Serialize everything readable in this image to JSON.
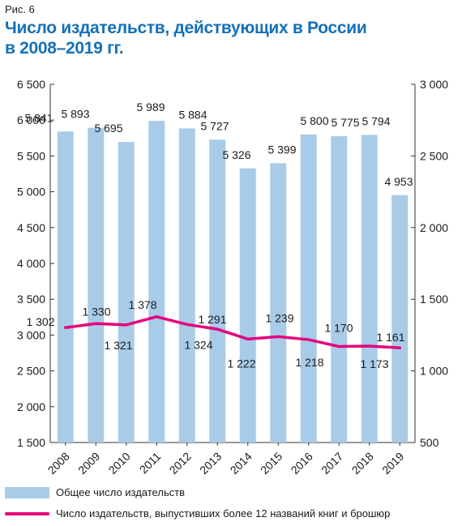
{
  "figure_label": "Рис. 6",
  "title_line1": "Число издательств, действующих в России",
  "title_line2": "в 2008–2019 гг.",
  "colors": {
    "bars": "#a8cbe8",
    "line": "#e5007d",
    "title": "#1570b8"
  },
  "chart_data": {
    "type": "bar",
    "categories": [
      "2008",
      "2009",
      "2010",
      "2011",
      "2012",
      "2013",
      "2014",
      "2015",
      "2016",
      "2017",
      "2018",
      "2019"
    ],
    "series": [
      {
        "name": "Общее число издательств",
        "type": "bar",
        "axis": "left",
        "values": [
          5841,
          5893,
          5695,
          5989,
          5884,
          5727,
          5326,
          5399,
          5800,
          5775,
          5794,
          4953
        ],
        "labels": [
          "5 841",
          "5 893",
          "5 695",
          "5 989",
          "5 884",
          "5 727",
          "5 326",
          "5 399",
          "5 800",
          "5 775",
          "5 794",
          "4 953"
        ]
      },
      {
        "name": "Число издательств, выпустивших более 12 названий книг и брошюр",
        "type": "line",
        "axis": "right",
        "values": [
          1302,
          1330,
          1321,
          1378,
          1324,
          1291,
          1222,
          1239,
          1218,
          1170,
          1173,
          1161
        ],
        "labels": [
          "1 302",
          "1 330",
          "1 321",
          "1 378",
          "1 324",
          "1 291",
          "1 222",
          "1 239",
          "1 218",
          "1 170",
          "1 173",
          "1 161"
        ]
      }
    ],
    "ylim_left": [
      1500,
      6500
    ],
    "yticks_left": [
      "6 500",
      "6 000",
      "5 500",
      "5 000",
      "4 500",
      "4 000",
      "3 500",
      "3 000",
      "2 500",
      "2 000",
      "1 500"
    ],
    "ylim_right": [
      500,
      3000
    ],
    "yticks_right": [
      "3 000",
      "2 500",
      "2 000",
      "1 500",
      "1 000",
      "500"
    ],
    "grid": false,
    "legend_position": "bottom"
  }
}
